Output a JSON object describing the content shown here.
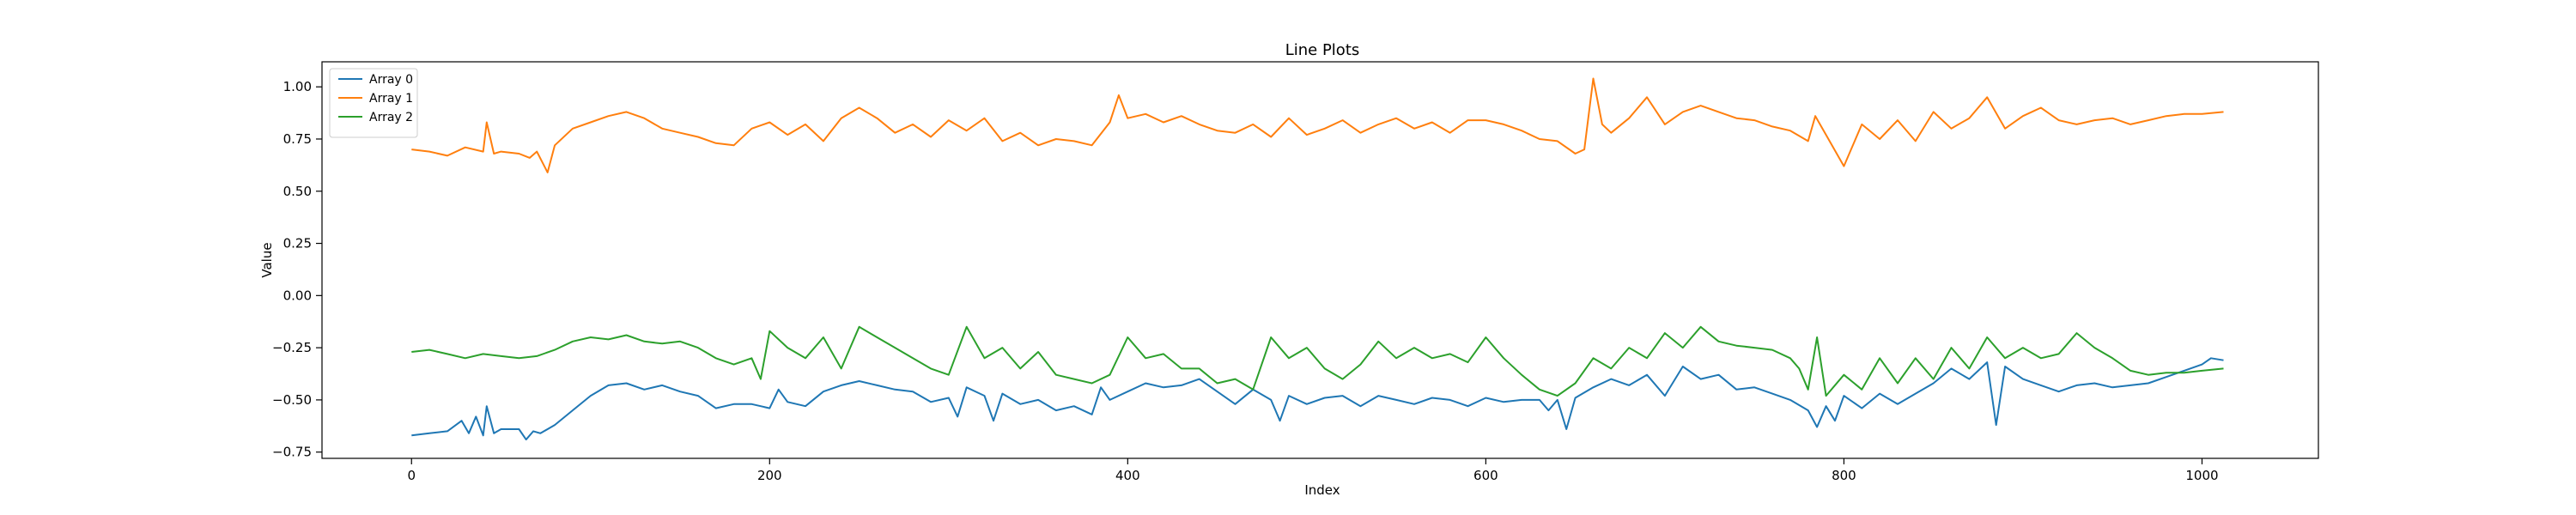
{
  "chart_data": {
    "type": "line",
    "title": "Line Plots",
    "xlabel": "Index",
    "ylabel": "Value",
    "xlim": [
      -50,
      1065
    ],
    "ylim": [
      -0.78,
      1.12
    ],
    "xticks": [
      0,
      200,
      400,
      600,
      800,
      1000
    ],
    "xtick_labels": [
      "0",
      "200",
      "400",
      "600",
      "800",
      "1000"
    ],
    "yticks": [
      -0.75,
      -0.5,
      -0.25,
      0.0,
      0.25,
      0.5,
      0.75,
      1.0
    ],
    "ytick_labels": [
      "−0.75",
      "−0.50",
      "−0.25",
      "0.00",
      "0.25",
      "0.50",
      "0.75",
      "1.00"
    ],
    "grid": false,
    "legend_position": "top-left",
    "series": [
      {
        "name": "Array 0",
        "color": "#1f77b4",
        "x": [
          0,
          10,
          20,
          28,
          32,
          36,
          40,
          42,
          46,
          50,
          60,
          64,
          68,
          72,
          80,
          90,
          100,
          110,
          120,
          130,
          140,
          150,
          160,
          170,
          180,
          190,
          200,
          205,
          210,
          220,
          230,
          240,
          250,
          260,
          270,
          280,
          290,
          300,
          305,
          310,
          320,
          325,
          330,
          340,
          350,
          360,
          370,
          380,
          385,
          390,
          400,
          410,
          420,
          430,
          440,
          450,
          460,
          470,
          480,
          485,
          490,
          500,
          510,
          520,
          530,
          540,
          550,
          560,
          570,
          580,
          590,
          600,
          610,
          620,
          630,
          635,
          640,
          645,
          650,
          660,
          670,
          680,
          690,
          700,
          710,
          720,
          730,
          740,
          750,
          760,
          770,
          780,
          785,
          790,
          795,
          800,
          810,
          820,
          830,
          840,
          850,
          860,
          870,
          880,
          885,
          890,
          900,
          910,
          920,
          930,
          940,
          950,
          960,
          970,
          980,
          990,
          1000,
          1005,
          1012
        ],
        "values": [
          -0.67,
          -0.66,
          -0.65,
          -0.6,
          -0.66,
          -0.58,
          -0.67,
          -0.53,
          -0.66,
          -0.64,
          -0.64,
          -0.69,
          -0.65,
          -0.66,
          -0.62,
          -0.55,
          -0.48,
          -0.43,
          -0.42,
          -0.45,
          -0.43,
          -0.46,
          -0.48,
          -0.54,
          -0.52,
          -0.52,
          -0.54,
          -0.45,
          -0.51,
          -0.53,
          -0.46,
          -0.43,
          -0.41,
          -0.43,
          -0.45,
          -0.46,
          -0.51,
          -0.49,
          -0.58,
          -0.44,
          -0.48,
          -0.6,
          -0.47,
          -0.52,
          -0.5,
          -0.55,
          -0.53,
          -0.57,
          -0.44,
          -0.5,
          -0.46,
          -0.42,
          -0.44,
          -0.43,
          -0.4,
          -0.46,
          -0.52,
          -0.45,
          -0.5,
          -0.6,
          -0.48,
          -0.52,
          -0.49,
          -0.48,
          -0.53,
          -0.48,
          -0.5,
          -0.52,
          -0.49,
          -0.5,
          -0.53,
          -0.49,
          -0.51,
          -0.5,
          -0.5,
          -0.55,
          -0.5,
          -0.64,
          -0.49,
          -0.44,
          -0.4,
          -0.43,
          -0.38,
          -0.48,
          -0.34,
          -0.4,
          -0.38,
          -0.45,
          -0.44,
          -0.47,
          -0.5,
          -0.55,
          -0.63,
          -0.53,
          -0.6,
          -0.48,
          -0.54,
          -0.47,
          -0.52,
          -0.47,
          -0.42,
          -0.35,
          -0.4,
          -0.32,
          -0.62,
          -0.34,
          -0.4,
          -0.43,
          -0.46,
          -0.43,
          -0.42,
          -0.44,
          -0.43,
          -0.42,
          -0.39,
          -0.36,
          -0.33,
          -0.3,
          -0.31
        ]
      },
      {
        "name": "Array 1",
        "color": "#ff7f0e",
        "x": [
          0,
          10,
          20,
          30,
          40,
          42,
          46,
          50,
          60,
          66,
          70,
          76,
          80,
          90,
          100,
          110,
          120,
          130,
          140,
          150,
          160,
          170,
          180,
          190,
          200,
          210,
          220,
          230,
          240,
          250,
          260,
          270,
          280,
          290,
          300,
          310,
          320,
          330,
          340,
          350,
          360,
          370,
          380,
          390,
          395,
          400,
          410,
          420,
          430,
          440,
          450,
          460,
          470,
          480,
          490,
          500,
          510,
          520,
          530,
          540,
          550,
          560,
          570,
          580,
          590,
          600,
          610,
          620,
          630,
          640,
          650,
          655,
          660,
          665,
          670,
          680,
          690,
          700,
          710,
          720,
          730,
          740,
          750,
          760,
          770,
          780,
          784,
          790,
          800,
          810,
          820,
          830,
          840,
          850,
          860,
          870,
          880,
          890,
          900,
          910,
          920,
          930,
          940,
          950,
          960,
          970,
          980,
          990,
          1000,
          1012
        ],
        "values": [
          0.7,
          0.69,
          0.67,
          0.71,
          0.69,
          0.83,
          0.68,
          0.69,
          0.68,
          0.66,
          0.69,
          0.59,
          0.72,
          0.8,
          0.83,
          0.86,
          0.88,
          0.85,
          0.8,
          0.78,
          0.76,
          0.73,
          0.72,
          0.8,
          0.83,
          0.77,
          0.82,
          0.74,
          0.85,
          0.9,
          0.85,
          0.78,
          0.82,
          0.76,
          0.84,
          0.79,
          0.85,
          0.74,
          0.78,
          0.72,
          0.75,
          0.74,
          0.72,
          0.83,
          0.96,
          0.85,
          0.87,
          0.83,
          0.86,
          0.82,
          0.79,
          0.78,
          0.82,
          0.76,
          0.85,
          0.77,
          0.8,
          0.84,
          0.78,
          0.82,
          0.85,
          0.8,
          0.83,
          0.78,
          0.84,
          0.84,
          0.82,
          0.79,
          0.75,
          0.74,
          0.68,
          0.7,
          1.04,
          0.82,
          0.78,
          0.85,
          0.95,
          0.82,
          0.88,
          0.91,
          0.88,
          0.85,
          0.84,
          0.81,
          0.79,
          0.74,
          0.86,
          0.77,
          0.62,
          0.82,
          0.75,
          0.84,
          0.74,
          0.88,
          0.8,
          0.85,
          0.95,
          0.8,
          0.86,
          0.9,
          0.84,
          0.82,
          0.84,
          0.85,
          0.82,
          0.84,
          0.86,
          0.87,
          0.87,
          0.88
        ]
      },
      {
        "name": "Array 2",
        "color": "#2ca02c",
        "x": [
          0,
          10,
          20,
          30,
          40,
          50,
          60,
          70,
          80,
          90,
          100,
          110,
          120,
          130,
          140,
          150,
          160,
          170,
          180,
          190,
          195,
          200,
          210,
          220,
          230,
          240,
          250,
          260,
          270,
          280,
          290,
          300,
          310,
          320,
          330,
          340,
          350,
          360,
          370,
          380,
          390,
          400,
          410,
          420,
          430,
          440,
          450,
          460,
          470,
          480,
          490,
          500,
          510,
          520,
          530,
          540,
          550,
          560,
          570,
          580,
          590,
          600,
          610,
          620,
          630,
          640,
          650,
          660,
          670,
          680,
          690,
          700,
          710,
          720,
          730,
          740,
          750,
          760,
          770,
          775,
          780,
          785,
          790,
          800,
          810,
          820,
          830,
          840,
          850,
          860,
          870,
          880,
          890,
          900,
          910,
          920,
          930,
          940,
          950,
          960,
          970,
          980,
          990,
          1000,
          1012
        ],
        "values": [
          -0.27,
          -0.26,
          -0.28,
          -0.3,
          -0.28,
          -0.29,
          -0.3,
          -0.29,
          -0.26,
          -0.22,
          -0.2,
          -0.21,
          -0.19,
          -0.22,
          -0.23,
          -0.22,
          -0.25,
          -0.3,
          -0.33,
          -0.3,
          -0.4,
          -0.17,
          -0.25,
          -0.3,
          -0.2,
          -0.35,
          -0.15,
          -0.2,
          -0.25,
          -0.3,
          -0.35,
          -0.38,
          -0.15,
          -0.3,
          -0.25,
          -0.35,
          -0.27,
          -0.38,
          -0.4,
          -0.42,
          -0.38,
          -0.2,
          -0.3,
          -0.28,
          -0.35,
          -0.35,
          -0.42,
          -0.4,
          -0.45,
          -0.2,
          -0.3,
          -0.25,
          -0.35,
          -0.4,
          -0.33,
          -0.22,
          -0.3,
          -0.25,
          -0.3,
          -0.28,
          -0.32,
          -0.2,
          -0.3,
          -0.38,
          -0.45,
          -0.48,
          -0.42,
          -0.3,
          -0.35,
          -0.25,
          -0.3,
          -0.18,
          -0.25,
          -0.15,
          -0.22,
          -0.24,
          -0.25,
          -0.26,
          -0.3,
          -0.35,
          -0.45,
          -0.2,
          -0.48,
          -0.38,
          -0.45,
          -0.3,
          -0.42,
          -0.3,
          -0.4,
          -0.25,
          -0.35,
          -0.2,
          -0.3,
          -0.25,
          -0.3,
          -0.28,
          -0.18,
          -0.25,
          -0.3,
          -0.36,
          -0.38,
          -0.37,
          -0.37,
          -0.36,
          -0.35
        ]
      }
    ]
  }
}
